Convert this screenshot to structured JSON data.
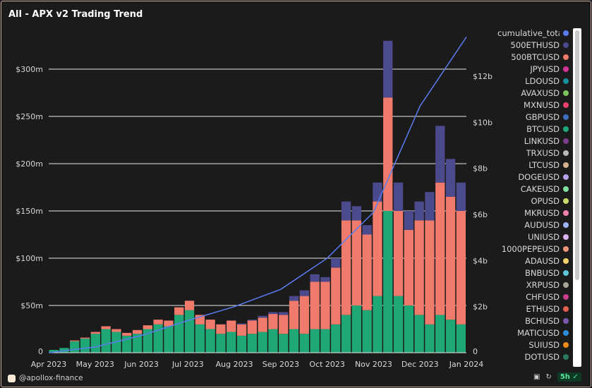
{
  "title": "All - APX v2 Trading Trend",
  "credit": "@apollox-finance",
  "badge": "5h",
  "chart_data": {
    "type": "bar",
    "stacked": true,
    "x_ticks": [
      "Apr 2023",
      "May 2023",
      "Jun 2023",
      "Jul 2023",
      "Aug 2023",
      "Sep 2023",
      "Oct 2023",
      "Nov 2023",
      "Dec 2023",
      "Jan 2024"
    ],
    "y_left": {
      "ticks": [
        "0",
        "$50m",
        "$100m",
        "$150m",
        "$200m",
        "$250m",
        "$300m"
      ],
      "values": [
        0,
        50,
        100,
        150,
        200,
        250,
        300
      ],
      "range": [
        0,
        330
      ],
      "unit": "$m"
    },
    "y_right": {
      "ticks": [
        "0",
        "$2b",
        "$4b",
        "$6b",
        "$8b",
        "$10b",
        "$12b"
      ],
      "values": [
        0,
        2,
        4,
        6,
        8,
        10,
        12
      ],
      "range": [
        0,
        13.8
      ],
      "unit": "$b"
    },
    "grid": true,
    "legend_position": "right",
    "weeks": 40,
    "series": [
      {
        "name": "BTCUSD",
        "color": "#1fa775",
        "values": [
          3,
          5,
          12,
          15,
          20,
          25,
          22,
          18,
          20,
          25,
          30,
          28,
          40,
          45,
          30,
          25,
          20,
          22,
          18,
          20,
          22,
          25,
          20,
          25,
          20,
          25,
          25,
          30,
          40,
          50,
          45,
          60,
          150,
          60,
          50,
          40,
          30,
          40,
          35,
          30
        ]
      },
      {
        "name": "500BTCUSD",
        "color": "#f07b6c",
        "values": [
          0,
          0,
          1,
          1,
          2,
          3,
          3,
          3,
          4,
          4,
          5,
          6,
          8,
          10,
          10,
          10,
          10,
          12,
          12,
          14,
          15,
          16,
          20,
          30,
          40,
          50,
          50,
          60,
          100,
          90,
          80,
          100,
          120,
          90,
          80,
          100,
          110,
          140,
          130,
          120
        ]
      },
      {
        "name": "500ETHUSD",
        "color": "#4b4a8c",
        "values": [
          0,
          0,
          0,
          0,
          0,
          0,
          0,
          0,
          0,
          0,
          0,
          0,
          0,
          0,
          0,
          0,
          0,
          0,
          1,
          1,
          2,
          2,
          3,
          5,
          6,
          8,
          5,
          10,
          20,
          15,
          10,
          20,
          60,
          30,
          20,
          20,
          30,
          60,
          40,
          30
        ]
      }
    ],
    "line": {
      "name": "cumulative_total",
      "color": "#5a7cf0",
      "axis": "right",
      "x": [
        "Apr 2023",
        "May 2023",
        "Jun 2023",
        "Jul 2023",
        "Aug 2023",
        "Sep 2023",
        "Oct 2023",
        "Nov 2023",
        "Dec 2023",
        "Jan 2024"
      ],
      "values": [
        0,
        0.25,
        0.75,
        1.4,
        2.0,
        2.75,
        4.1,
        6.1,
        10.7,
        13.7
      ]
    }
  },
  "legend": [
    {
      "label": "cumulative_total",
      "color": "#5a7cf0"
    },
    {
      "label": "500ETHUSD",
      "color": "#4b4a8c"
    },
    {
      "label": "500BTCUSD",
      "color": "#f07b6c"
    },
    {
      "label": "JPYUSD",
      "color": "#d0339a"
    },
    {
      "label": "LDOUSD",
      "color": "#14919b"
    },
    {
      "label": "AVAXUSD",
      "color": "#7cc45a"
    },
    {
      "label": "MXNUSD",
      "color": "#e8416e"
    },
    {
      "label": "GBPUSD",
      "color": "#3c6fc0"
    },
    {
      "label": "BTCUSD",
      "color": "#1fa775"
    },
    {
      "label": "LINKUSD",
      "color": "#7a3f8a"
    },
    {
      "label": "TRXUSD",
      "color": "#b8b8b8"
    },
    {
      "label": "LTCUSD",
      "color": "#d4b28a"
    },
    {
      "label": "DOGEUSD",
      "color": "#b7a0ec"
    },
    {
      "label": "CAKEUSD",
      "color": "#7fe0a0"
    },
    {
      "label": "OPUSD",
      "color": "#c9dc6a"
    },
    {
      "label": "MKRUSD",
      "color": "#f383ad"
    },
    {
      "label": "AUDUSD",
      "color": "#9fb5f5"
    },
    {
      "label": "UNIUSD",
      "color": "#dcb1f0"
    },
    {
      "label": "1000PEPEUSD",
      "color": "#f0967a"
    },
    {
      "label": "ADAUSD",
      "color": "#f5cf6e"
    },
    {
      "label": "BNBUSD",
      "color": "#5cc7d6"
    },
    {
      "label": "XRPUSD",
      "color": "#a9a596"
    },
    {
      "label": "CHFUSD",
      "color": "#c93d8c"
    },
    {
      "label": "ETHUSD",
      "color": "#e5604f"
    },
    {
      "label": "BCHUSD",
      "color": "#7d58b0"
    },
    {
      "label": "MATICUSD",
      "color": "#2e8ed6"
    },
    {
      "label": "SUIUSD",
      "color": "#f08a1a"
    },
    {
      "label": "DOTUSD",
      "color": "#2a7a5e"
    }
  ]
}
